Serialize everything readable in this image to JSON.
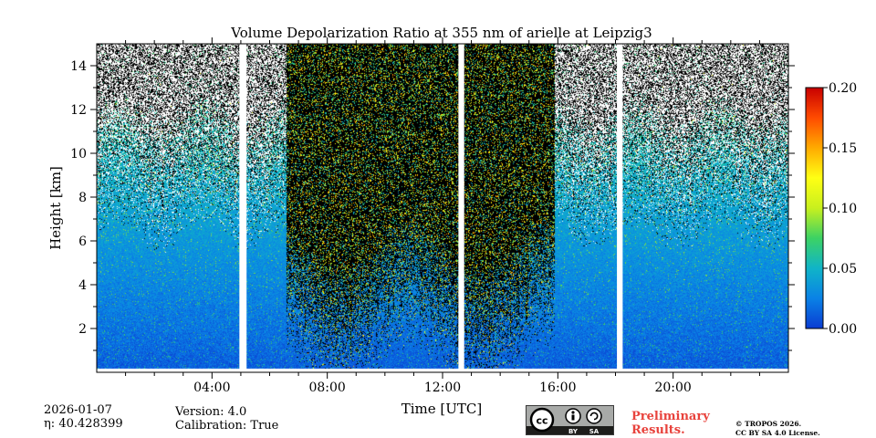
{
  "title": "Volume Depolarization Ratio at 355 nm of arielle at Leipzig3",
  "chart_data": {
    "type": "heatmap",
    "title": "Volume Depolarization Ratio at 355 nm of arielle at Leipzig3",
    "xlabel": "Time [UTC]",
    "ylabel": "Height [km]",
    "x_unit": "hours UTC",
    "xlim": [
      0,
      24
    ],
    "ylim": [
      0,
      15
    ],
    "xticks": [
      4,
      8,
      12,
      16,
      20
    ],
    "xtick_labels": [
      "04:00",
      "08:00",
      "12:00",
      "16:00",
      "20:00"
    ],
    "yticks": [
      2,
      4,
      6,
      8,
      10,
      12,
      14
    ],
    "ytick_labels": [
      "2",
      "4",
      "6",
      "8",
      "10",
      "12",
      "14"
    ],
    "colorbar": {
      "range": [
        0.0,
        0.2
      ],
      "ticks": [
        0.0,
        0.05,
        0.1,
        0.15,
        0.2
      ],
      "tick_labels": [
        "0.00",
        "0.05",
        "0.10",
        "0.15",
        "0.20"
      ],
      "colors": [
        "#0a3cd2",
        "#0a82e6",
        "#10b4c8",
        "#3cd264",
        "#c8f01e",
        "#ffff14",
        "#ffaa00",
        "#ff4b00",
        "#c80000"
      ]
    },
    "data_gaps_hours": [
      [
        4.95,
        5.2
      ],
      [
        12.55,
        12.75
      ],
      [
        18.05,
        18.25
      ]
    ],
    "noise_background": "#000000",
    "depol_profile_by_height_km": [
      {
        "height_km": 0.5,
        "value": 0.02
      },
      {
        "height_km": 2,
        "value": 0.025
      },
      {
        "height_km": 4,
        "value": 0.03
      },
      {
        "height_km": 6,
        "value": 0.035
      },
      {
        "height_km": 8,
        "value": 0.04
      }
    ],
    "signal_top_km_clear": 9.0,
    "elevated_noise_interval_hours": [
      6.6,
      15.9
    ]
  },
  "info": {
    "date": "2026-01-07",
    "eta": "40.428399",
    "eta_label": "η: ",
    "version": "Version: 4.0",
    "calibration": "Calibration: True",
    "preliminary_line1": "Preliminary",
    "preliminary_line2": "Results.",
    "copyright_line1": "© TROPOS 2026.",
    "copyright_line2": "CC BY SA 4.0 License."
  },
  "license_badge": {
    "cc": "cc",
    "by": "BY",
    "sa": "SA"
  }
}
